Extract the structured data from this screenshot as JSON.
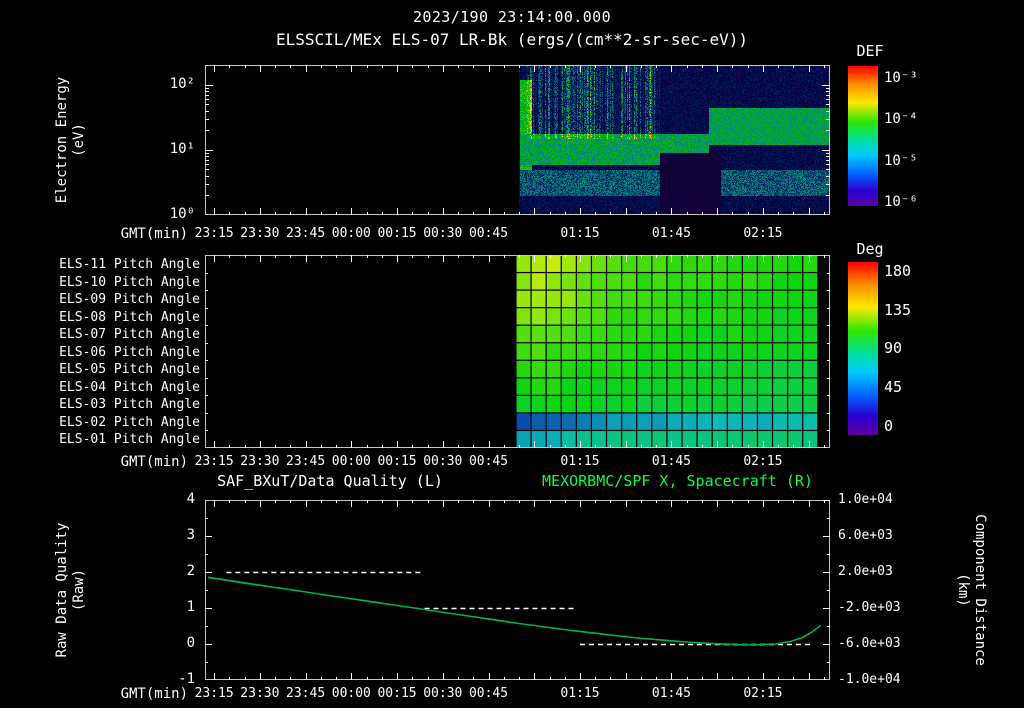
{
  "header": {
    "timestamp": "2023/190 23:14:00.000",
    "title": "ELSSCIL/MEx ELS-07 LR-Bk (ergs/(cm**2-sr-sec-eV))"
  },
  "time_axis": {
    "label": "GMT(min)",
    "tmin": -3,
    "tmax": 202,
    "minor_step": 5,
    "ticks": [
      {
        "t": 0,
        "label": "23:15"
      },
      {
        "t": 15,
        "label": "23:30"
      },
      {
        "t": 30,
        "label": "23:45"
      },
      {
        "t": 45,
        "label": "00:00"
      },
      {
        "t": 60,
        "label": "00:15"
      },
      {
        "t": 75,
        "label": "00:30"
      },
      {
        "t": 90,
        "label": "00:45"
      },
      {
        "t": 120,
        "label": "01:15"
      },
      {
        "t": 150,
        "label": "01:45"
      },
      {
        "t": 180,
        "label": "02:15"
      }
    ],
    "unlabeled_major": [
      105,
      135,
      165,
      195
    ]
  },
  "chart_data": [
    {
      "type": "heatmap",
      "name": "electron-energy-spectrogram",
      "title": "ELSSCIL/MEx ELS-07 LR-Bk (ergs/(cm**2-sr-sec-eV))",
      "ylabel": [
        "Electron Energy",
        "(eV)"
      ],
      "yscale": "log",
      "ylim_eV": [
        1,
        200
      ],
      "ytick_labels": [
        "10²",
        "10¹",
        "10⁰"
      ],
      "ytick_values": [
        100,
        10,
        1
      ],
      "colorbar": {
        "title": "DEF",
        "labels": [
          "10⁻³",
          "10⁻⁴",
          "10⁻⁵",
          "10⁻⁶"
        ],
        "scale": "log",
        "units": "ergs/(cm**2-sr-sec-eV)"
      },
      "data_start_gmt": "00:55",
      "data_end_gmt": "02:35",
      "data_start_t": 100,
      "data_end_t": 202,
      "noise_base": 0.07,
      "features": [
        {
          "kind": "hband",
          "t0": 100,
          "t1": 104,
          "e0": 3,
          "e1": 120,
          "v": 0.5,
          "jitter": 0.2
        },
        {
          "kind": "hband",
          "t0": 100,
          "t1": 162,
          "e0": 6,
          "e1": 18,
          "v": 0.4,
          "jitter": 0.25
        },
        {
          "kind": "hband",
          "t0": 100,
          "t1": 202,
          "e0": 2,
          "e1": 5,
          "v": 0.24,
          "jitter": 0.2
        },
        {
          "kind": "streaks",
          "t0": 102,
          "t1": 146,
          "e0": 15,
          "e1": 200,
          "gain": 0.5
        },
        {
          "kind": "dark",
          "t0": 146,
          "t1": 166,
          "e0": 1,
          "e1": 9,
          "v": 0.04
        },
        {
          "kind": "hband",
          "t0": 162,
          "t1": 202,
          "e0": 12,
          "e1": 45,
          "v": 0.42,
          "jitter": 0.18
        }
      ]
    },
    {
      "type": "heatmap",
      "name": "pitch-angle-panels",
      "rows": [
        "ELS-11 Pitch Angle",
        "ELS-10 Pitch Angle",
        "ELS-09 Pitch Angle",
        "ELS-08 Pitch Angle",
        "ELS-07 Pitch Angle",
        "ELS-06 Pitch Angle",
        "ELS-05 Pitch Angle",
        "ELS-04 Pitch Angle",
        "ELS-03 Pitch Angle",
        "ELS-02 Pitch Angle",
        "ELS-01 Pitch Angle"
      ],
      "colorbar": {
        "title": "Deg",
        "labels": [
          "180",
          "135",
          "90",
          "45",
          "0"
        ],
        "range": [
          0,
          180
        ]
      },
      "data_start_t": 99,
      "data_end_t": 198,
      "matrix_deg": [
        [
          128,
          132,
          130,
          126,
          122,
          118,
          114,
          112,
          110,
          110,
          108,
          108,
          106,
          106,
          106,
          104,
          104,
          104,
          102,
          102
        ],
        [
          124,
          128,
          126,
          122,
          118,
          114,
          112,
          110,
          108,
          108,
          106,
          106,
          106,
          104,
          104,
          104,
          102,
          102,
          102,
          100
        ],
        [
          126,
          130,
          128,
          124,
          118,
          114,
          110,
          108,
          108,
          106,
          106,
          104,
          104,
          104,
          102,
          102,
          102,
          100,
          100,
          100
        ],
        [
          120,
          122,
          120,
          116,
          112,
          110,
          108,
          106,
          106,
          104,
          104,
          102,
          102,
          102,
          100,
          100,
          100,
          98,
          98,
          98
        ],
        [
          112,
          114,
          112,
          110,
          108,
          106,
          106,
          104,
          104,
          102,
          102,
          102,
          100,
          100,
          100,
          98,
          98,
          98,
          96,
          96
        ],
        [
          108,
          110,
          108,
          106,
          106,
          104,
          104,
          102,
          102,
          100,
          100,
          100,
          98,
          98,
          98,
          96,
          96,
          96,
          96,
          94
        ],
        [
          104,
          106,
          104,
          104,
          102,
          102,
          100,
          100,
          98,
          98,
          98,
          96,
          96,
          96,
          96,
          94,
          94,
          94,
          92,
          92
        ],
        [
          102,
          102,
          102,
          100,
          100,
          98,
          98,
          96,
          96,
          96,
          94,
          94,
          94,
          94,
          92,
          92,
          92,
          90,
          90,
          90
        ],
        [
          98,
          98,
          98,
          96,
          96,
          96,
          94,
          94,
          92,
          92,
          92,
          92,
          90,
          90,
          90,
          88,
          88,
          88,
          88,
          86
        ],
        [
          36,
          38,
          40,
          44,
          48,
          50,
          52,
          54,
          54,
          56,
          56,
          58,
          58,
          58,
          60,
          60,
          60,
          62,
          62,
          62
        ],
        [
          56,
          58,
          60,
          64,
          68,
          70,
          72,
          72,
          74,
          74,
          74,
          76,
          76,
          76,
          76,
          78,
          78,
          78,
          78,
          78
        ]
      ]
    },
    {
      "type": "line",
      "name": "quality-and-spacecraft-distance",
      "title_left": "SAF_BXuT/Data Quality (L)",
      "title_right": "MEXORBMC/SPF X, Spacecraft (R)",
      "ylabel_left": [
        "Raw Data Quality",
        "(Raw)"
      ],
      "ylabel_right": [
        "Component Distance",
        "(km)"
      ],
      "left_ticks": [
        "4",
        "3",
        "2",
        "1",
        "0",
        "-1"
      ],
      "left_tick_values": [
        4,
        3,
        2,
        1,
        0,
        -1
      ],
      "ylim_left": [
        -1,
        4
      ],
      "right_ticks": [
        "1.0e+04",
        "6.0e+03",
        "2.0e+03",
        "-2.0e+03",
        "-6.0e+03",
        "-1.0e+04"
      ],
      "ylim_right": [
        -10000,
        10000
      ],
      "curve": {
        "x": [
          -2,
          5,
          12,
          20,
          28,
          36,
          44,
          52,
          60,
          68,
          76,
          84,
          92,
          100,
          108,
          116,
          124,
          132,
          140,
          148,
          156,
          164,
          172,
          178,
          184,
          189,
          193,
          196,
          199
        ],
        "y": [
          1.85,
          1.76,
          1.67,
          1.57,
          1.47,
          1.37,
          1.27,
          1.17,
          1.07,
          0.97,
          0.87,
          0.77,
          0.67,
          0.57,
          0.48,
          0.39,
          0.31,
          0.23,
          0.16,
          0.1,
          0.05,
          0.01,
          -0.02,
          -0.02,
          0.0,
          0.07,
          0.18,
          0.33,
          0.52
        ]
      },
      "quality_segments": [
        {
          "value": 2,
          "t0": 4,
          "t1": 68
        },
        {
          "value": 1,
          "t0": 69,
          "t1": 119
        },
        {
          "value": 0,
          "t0": 120,
          "t1": 196
        }
      ],
      "colors": {
        "curve": "#00b050",
        "dashes": "#ffffff",
        "title_right": "#00ff44"
      }
    }
  ],
  "colors": {
    "background": "#000000",
    "text": "#ffffff",
    "accent_green": "#00ff44",
    "axis": "#c8c8c8"
  }
}
